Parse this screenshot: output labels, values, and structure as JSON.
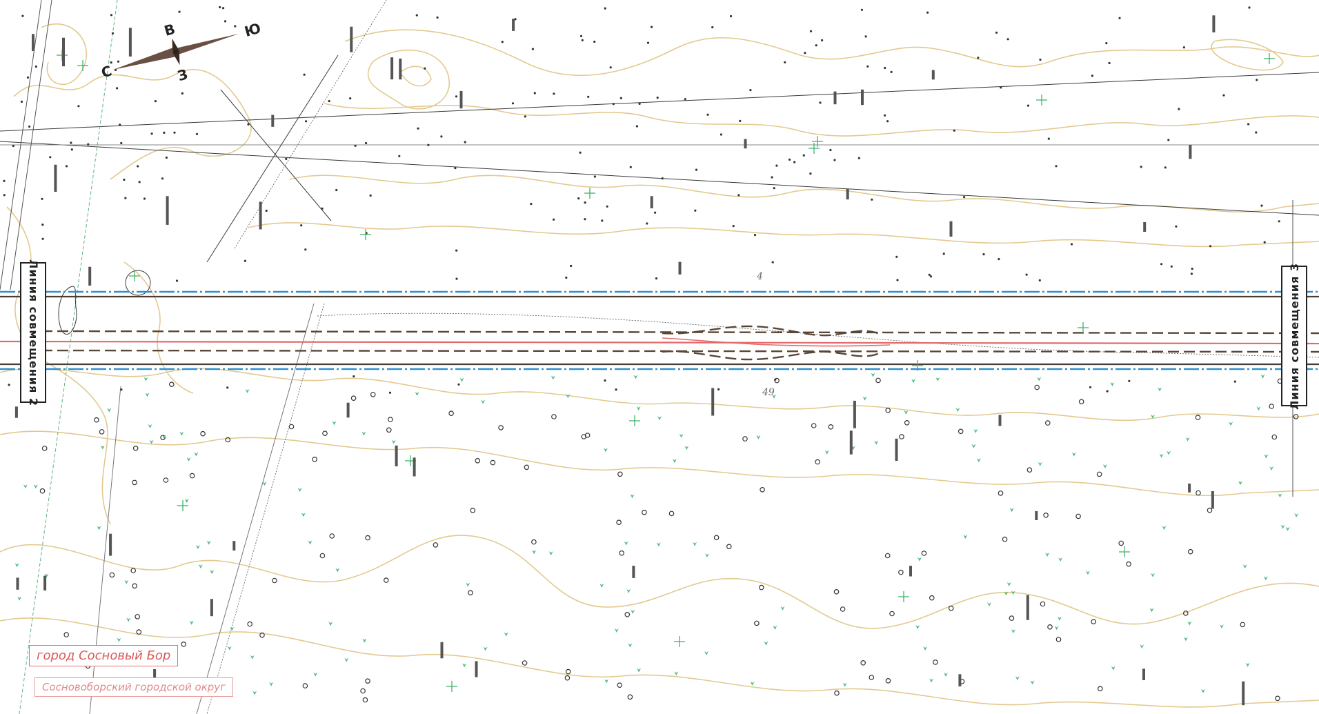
{
  "map": {
    "match_lines": {
      "left": "Линия совмещения 2",
      "right": "Линия совмещения 3"
    },
    "labels": {
      "city": "город Сосновый Бор",
      "district": "Сосновоборский городской округ"
    },
    "compass": {
      "north": "С",
      "east": "В",
      "south": "Ю",
      "west": "З"
    },
    "corridor_marks": {
      "upper": "4",
      "lower": "49"
    },
    "colors": {
      "background": "#ffffff",
      "contour": "#e3c98f",
      "corridor_blue": "#2f8fd2",
      "corridor_dark": "#4a3d33",
      "corridor_red": "#e46a6a",
      "vegetation_green": "#3fb36a",
      "label_red": "#d85a5a"
    },
    "legend_icons": [
      "compass-rose-icon",
      "tree-symbol-icon",
      "grass-symbol-icon",
      "survey-point-icon"
    ]
  }
}
